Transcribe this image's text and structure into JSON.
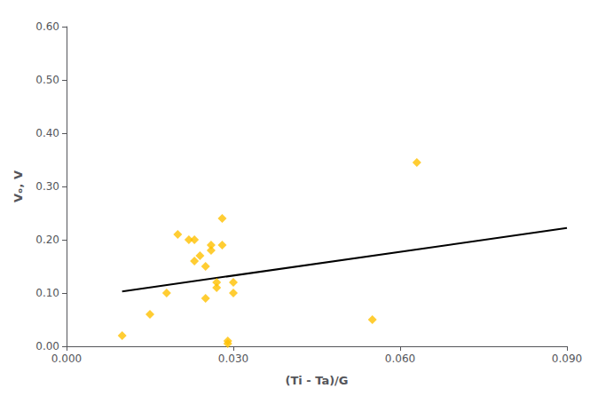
{
  "chart_data": {
    "type": "scatter",
    "xlabel": "(Ti - Ta)/G",
    "ylabel": "Vₒ, V",
    "series": [
      {
        "type": "scatter",
        "color": "#FFC000",
        "marker": "diamond",
        "x": [
          0.01,
          0.015,
          0.018,
          0.02,
          0.022,
          0.023,
          0.023,
          0.024,
          0.025,
          0.025,
          0.026,
          0.026,
          0.027,
          0.027,
          0.028,
          0.028,
          0.029,
          0.029,
          0.03,
          0.03,
          0.055,
          0.063
        ],
        "values": [
          0.02,
          0.06,
          0.1,
          0.21,
          0.2,
          0.16,
          0.2,
          0.17,
          0.09,
          0.15,
          0.19,
          0.18,
          0.12,
          0.11,
          0.24,
          0.19,
          0.01,
          0.005,
          0.1,
          0.12,
          0.05,
          0.345
        ]
      },
      {
        "type": "line",
        "color": "#000000",
        "line_style": "solid",
        "x": [
          0.01,
          0.09
        ],
        "values": [
          0.103,
          0.222
        ]
      }
    ],
    "xlim": [
      0.0,
      0.09
    ],
    "ylim": [
      0.0,
      0.6
    ],
    "xticks": [
      {
        "value": 0.0,
        "label": "0.000"
      },
      {
        "value": 0.03,
        "label": "0.030"
      },
      {
        "value": 0.06,
        "label": "0.060"
      },
      {
        "value": 0.09,
        "label": "0.090"
      }
    ],
    "yticks": [
      {
        "value": 0.0,
        "label": "0.00"
      },
      {
        "value": 0.1,
        "label": "0.10"
      },
      {
        "value": 0.2,
        "label": "0.20"
      },
      {
        "value": 0.3,
        "label": "0.30"
      },
      {
        "value": 0.4,
        "label": "0.40"
      },
      {
        "value": 0.5,
        "label": "0.50"
      },
      {
        "value": 0.6,
        "label": "0.60"
      }
    ],
    "grid": false
  }
}
